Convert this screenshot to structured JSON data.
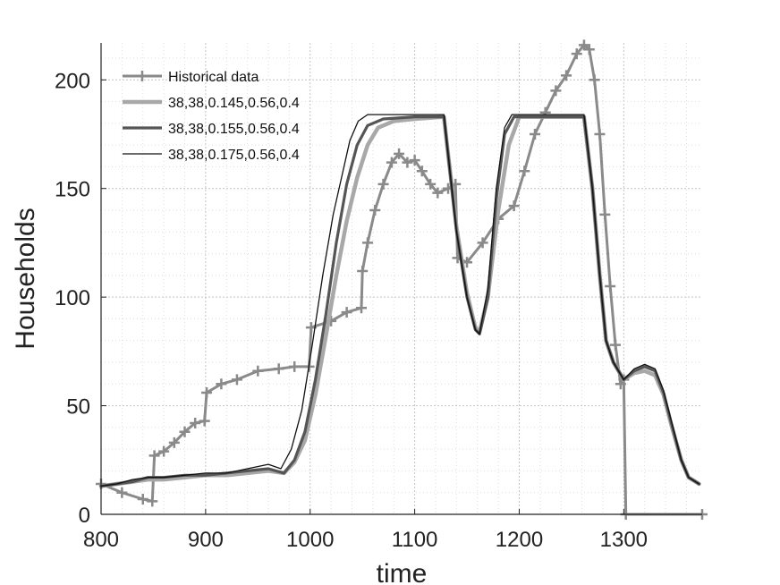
{
  "chart_data": {
    "type": "line",
    "xlabel": "time",
    "ylabel": "Households",
    "xlim": [
      800,
      1375
    ],
    "ylim": [
      0,
      217
    ],
    "xticks": [
      800,
      900,
      1000,
      1100,
      1200,
      1300
    ],
    "yticks": [
      0,
      50,
      100,
      150,
      200
    ],
    "grid": "major and minor, dotted",
    "legend_position": "top-left",
    "series": [
      {
        "name": "Historical data",
        "color": "#8a8a8a",
        "marker": "plus",
        "points": [
          [
            800,
            14
          ],
          [
            820,
            10
          ],
          [
            840,
            7
          ],
          [
            849,
            6
          ],
          [
            851,
            27
          ],
          [
            860,
            29
          ],
          [
            870,
            33
          ],
          [
            880,
            38
          ],
          [
            890,
            42
          ],
          [
            899,
            43
          ],
          [
            901,
            56
          ],
          [
            915,
            60
          ],
          [
            930,
            62
          ],
          [
            950,
            66
          ],
          [
            970,
            67
          ],
          [
            985,
            68
          ],
          [
            999,
            68
          ],
          [
            1001,
            86
          ],
          [
            1020,
            89
          ],
          [
            1035,
            93
          ],
          [
            1049,
            95
          ],
          [
            1050,
            112
          ],
          [
            1055,
            125
          ],
          [
            1062,
            140
          ],
          [
            1070,
            152
          ],
          [
            1078,
            162
          ],
          [
            1085,
            166
          ],
          [
            1093,
            162
          ],
          [
            1100,
            163
          ],
          [
            1107,
            158
          ],
          [
            1115,
            152
          ],
          [
            1122,
            148
          ],
          [
            1132,
            150
          ],
          [
            1139,
            152
          ],
          [
            1141,
            118
          ],
          [
            1150,
            116
          ],
          [
            1165,
            125
          ],
          [
            1180,
            136
          ],
          [
            1195,
            142
          ],
          [
            1205,
            158
          ],
          [
            1215,
            175
          ],
          [
            1225,
            185
          ],
          [
            1235,
            195
          ],
          [
            1245,
            202
          ],
          [
            1255,
            212
          ],
          [
            1262,
            216
          ],
          [
            1267,
            214
          ],
          [
            1272,
            200
          ],
          [
            1277,
            175
          ],
          [
            1282,
            138
          ],
          [
            1287,
            105
          ],
          [
            1292,
            78
          ],
          [
            1297,
            60
          ],
          [
            1300,
            62
          ],
          [
            1302,
            0
          ],
          [
            1375,
            0
          ]
        ]
      },
      {
        "name": "38,38,0.145,0.56,0.4",
        "color": "#a8a8a8",
        "marker": "none",
        "points": [
          [
            800,
            13
          ],
          [
            815,
            14
          ],
          [
            830,
            15
          ],
          [
            845,
            16
          ],
          [
            860,
            16
          ],
          [
            880,
            17
          ],
          [
            900,
            18
          ],
          [
            920,
            18
          ],
          [
            940,
            19
          ],
          [
            960,
            20
          ],
          [
            975,
            19
          ],
          [
            985,
            24
          ],
          [
            995,
            34
          ],
          [
            1005,
            55
          ],
          [
            1015,
            82
          ],
          [
            1025,
            110
          ],
          [
            1035,
            135
          ],
          [
            1045,
            155
          ],
          [
            1055,
            170
          ],
          [
            1065,
            178
          ],
          [
            1080,
            181
          ],
          [
            1100,
            182
          ],
          [
            1128,
            183
          ],
          [
            1131,
            170
          ],
          [
            1140,
            132
          ],
          [
            1150,
            102
          ],
          [
            1158,
            86
          ],
          [
            1162,
            84
          ],
          [
            1170,
            100
          ],
          [
            1180,
            140
          ],
          [
            1190,
            170
          ],
          [
            1200,
            183
          ],
          [
            1262,
            183
          ],
          [
            1270,
            150
          ],
          [
            1277,
            110
          ],
          [
            1283,
            80
          ],
          [
            1290,
            70
          ],
          [
            1300,
            62
          ],
          [
            1310,
            65
          ],
          [
            1320,
            66
          ],
          [
            1330,
            64
          ],
          [
            1338,
            55
          ],
          [
            1345,
            42
          ],
          [
            1355,
            25
          ],
          [
            1362,
            17
          ],
          [
            1372,
            14
          ]
        ]
      },
      {
        "name": "38,38,0.155,0.56,0.4",
        "color": "#555555",
        "marker": "none",
        "points": [
          [
            800,
            13
          ],
          [
            815,
            14
          ],
          [
            830,
            15
          ],
          [
            845,
            17
          ],
          [
            860,
            17
          ],
          [
            880,
            18
          ],
          [
            900,
            18
          ],
          [
            920,
            19
          ],
          [
            940,
            20
          ],
          [
            960,
            21
          ],
          [
            975,
            19
          ],
          [
            985,
            25
          ],
          [
            995,
            38
          ],
          [
            1005,
            62
          ],
          [
            1015,
            92
          ],
          [
            1025,
            125
          ],
          [
            1035,
            152
          ],
          [
            1045,
            170
          ],
          [
            1055,
            179
          ],
          [
            1070,
            182
          ],
          [
            1100,
            183
          ],
          [
            1128,
            183
          ],
          [
            1131,
            170
          ],
          [
            1140,
            130
          ],
          [
            1150,
            100
          ],
          [
            1158,
            85
          ],
          [
            1162,
            83
          ],
          [
            1170,
            100
          ],
          [
            1178,
            145
          ],
          [
            1186,
            175
          ],
          [
            1195,
            183
          ],
          [
            1262,
            183
          ],
          [
            1270,
            150
          ],
          [
            1277,
            110
          ],
          [
            1283,
            80
          ],
          [
            1290,
            70
          ],
          [
            1300,
            62
          ],
          [
            1310,
            66
          ],
          [
            1320,
            68
          ],
          [
            1330,
            66
          ],
          [
            1338,
            56
          ],
          [
            1345,
            43
          ],
          [
            1355,
            25
          ],
          [
            1362,
            17
          ],
          [
            1372,
            14
          ]
        ]
      },
      {
        "name": "38,38,0.175,0.56,0.4",
        "color": "#111111",
        "marker": "none",
        "points": [
          [
            800,
            13
          ],
          [
            815,
            14
          ],
          [
            830,
            16
          ],
          [
            845,
            17
          ],
          [
            860,
            17
          ],
          [
            880,
            18
          ],
          [
            900,
            19
          ],
          [
            920,
            19
          ],
          [
            940,
            21
          ],
          [
            960,
            23
          ],
          [
            972,
            21
          ],
          [
            982,
            30
          ],
          [
            992,
            48
          ],
          [
            1002,
            78
          ],
          [
            1012,
            110
          ],
          [
            1022,
            138
          ],
          [
            1030,
            155
          ],
          [
            1038,
            172
          ],
          [
            1046,
            181
          ],
          [
            1055,
            184
          ],
          [
            1128,
            184
          ],
          [
            1131,
            170
          ],
          [
            1140,
            130
          ],
          [
            1150,
            100
          ],
          [
            1158,
            85
          ],
          [
            1162,
            83
          ],
          [
            1170,
            104
          ],
          [
            1178,
            150
          ],
          [
            1186,
            178
          ],
          [
            1193,
            184
          ],
          [
            1262,
            184
          ],
          [
            1270,
            150
          ],
          [
            1277,
            110
          ],
          [
            1283,
            80
          ],
          [
            1290,
            70
          ],
          [
            1300,
            62
          ],
          [
            1310,
            67
          ],
          [
            1320,
            69
          ],
          [
            1330,
            67
          ],
          [
            1338,
            57
          ],
          [
            1345,
            44
          ],
          [
            1355,
            25
          ],
          [
            1362,
            17
          ],
          [
            1372,
            14
          ]
        ]
      }
    ]
  }
}
